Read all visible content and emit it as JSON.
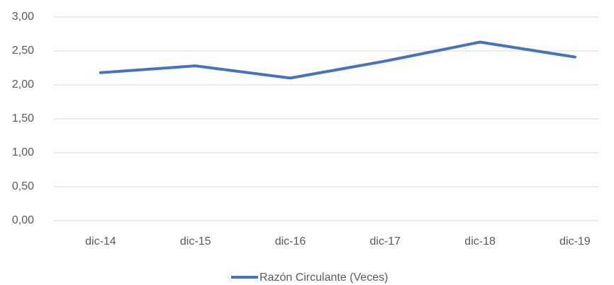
{
  "chart_data": {
    "type": "line",
    "categories": [
      "dic-14",
      "dic-15",
      "dic-16",
      "dic-17",
      "dic-18",
      "dic-19"
    ],
    "series": [
      {
        "name": "Razón Circulante (Veces)",
        "color": "#4472c4",
        "values": [
          2.18,
          2.28,
          2.1,
          2.35,
          2.63,
          2.41
        ]
      }
    ],
    "ylim": [
      0,
      3
    ],
    "yticks": [
      {
        "value": 0,
        "label": "0,00"
      },
      {
        "value": 0.5,
        "label": "0,50"
      },
      {
        "value": 1,
        "label": "1,00"
      },
      {
        "value": 1.5,
        "label": "1,50"
      },
      {
        "value": 2,
        "label": "2,00"
      },
      {
        "value": 2.5,
        "label": "2,50"
      },
      {
        "value": 3,
        "label": "3,00"
      }
    ],
    "grid": true,
    "legend": "bottom"
  }
}
